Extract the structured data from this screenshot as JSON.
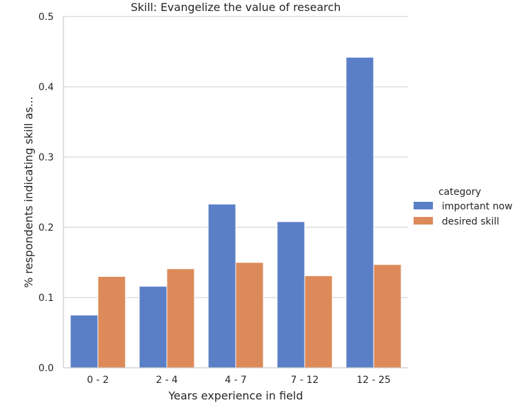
{
  "chart_data": {
    "type": "bar",
    "title": "Skill: Evangelize the value of research",
    "xlabel": "Years experience in field",
    "ylabel": "% respondents indicating skill as...",
    "categories": [
      "0 - 2",
      "2 - 4",
      "4 - 7",
      "7 - 12",
      "12 - 25"
    ],
    "series": [
      {
        "name": "important now",
        "color": "#5a7fc7",
        "values": [
          0.075,
          0.116,
          0.233,
          0.208,
          0.442
        ]
      },
      {
        "name": "desired skill",
        "color": "#dc8a5a",
        "values": [
          0.13,
          0.141,
          0.15,
          0.131,
          0.147
        ]
      }
    ],
    "ylim": [
      0,
      0.5
    ],
    "yticks": [
      "0.0",
      "0.1",
      "0.2",
      "0.3",
      "0.4",
      "0.5"
    ],
    "grid": true,
    "legend": {
      "title": "category",
      "placement": "right"
    }
  }
}
